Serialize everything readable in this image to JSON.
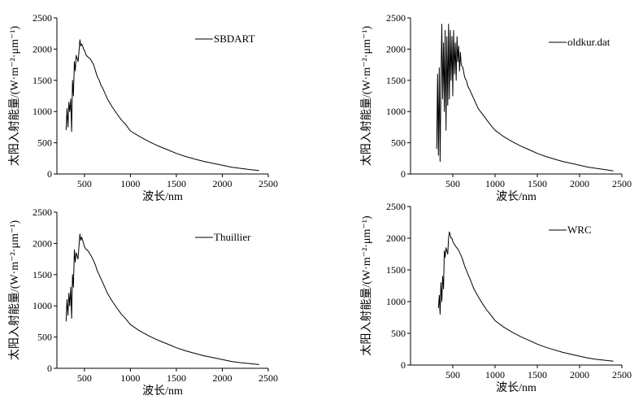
{
  "colors": {
    "line": "#000000",
    "axis": "#000000",
    "background": "#ffffff"
  },
  "chart_data": [
    {
      "type": "line",
      "title": "",
      "xlabel": "波长/nm",
      "ylabel": "太阳入射能量/(W·m⁻²·μm⁻¹)",
      "xlim": [
        200,
        2500
      ],
      "ylim": [
        0,
        2500
      ],
      "xticks": [
        500,
        1000,
        1500,
        2000,
        2500
      ],
      "yticks": [
        0,
        500,
        1000,
        1500,
        2000,
        2500
      ],
      "grid": false,
      "legend_position": "top-right",
      "series": [
        {
          "name": "SBDART",
          "x": [
            300,
            310,
            320,
            330,
            340,
            350,
            360,
            370,
            380,
            390,
            400,
            410,
            420,
            430,
            440,
            450,
            460,
            470,
            480,
            490,
            500,
            520,
            540,
            560,
            580,
            600,
            620,
            640,
            660,
            680,
            700,
            750,
            800,
            850,
            900,
            950,
            1000,
            1100,
            1200,
            1300,
            1400,
            1500,
            1600,
            1700,
            1800,
            1900,
            2000,
            2100,
            2200,
            2300,
            2400
          ],
          "y": [
            700,
            1050,
            750,
            1150,
            1000,
            1200,
            680,
            1500,
            1250,
            1800,
            1650,
            1900,
            1850,
            1800,
            1950,
            2150,
            2050,
            2080,
            2050,
            2000,
            1980,
            1900,
            1870,
            1850,
            1800,
            1750,
            1650,
            1560,
            1500,
            1420,
            1370,
            1200,
            1080,
            970,
            870,
            790,
            690,
            600,
            520,
            450,
            390,
            330,
            280,
            240,
            200,
            170,
            140,
            110,
            90,
            70,
            55
          ]
        }
      ]
    },
    {
      "type": "line",
      "title": "",
      "xlabel": "波长/nm",
      "ylabel": "太阳入射能量/(W·m⁻²·μm⁻¹)",
      "xlim": [
        0,
        2500
      ],
      "ylim": [
        0,
        2500
      ],
      "xticks": [
        500,
        1000,
        1500,
        2000,
        2500
      ],
      "yticks": [
        0,
        500,
        1000,
        1500,
        2000,
        2500
      ],
      "grid": false,
      "legend_position": "top-right",
      "series": [
        {
          "name": "oldkur.dat",
          "x": [
            310,
            320,
            330,
            340,
            350,
            360,
            370,
            380,
            390,
            400,
            410,
            420,
            430,
            440,
            450,
            460,
            470,
            480,
            490,
            500,
            510,
            520,
            530,
            540,
            550,
            560,
            570,
            580,
            590,
            600,
            620,
            640,
            660,
            680,
            700,
            750,
            800,
            850,
            900,
            950,
            1000,
            1100,
            1200,
            1300,
            1400,
            1500,
            1600,
            1700,
            1800,
            1900,
            2000,
            2100,
            2200,
            2300,
            2400
          ],
          "y": [
            400,
            1600,
            300,
            1700,
            200,
            1400,
            2400,
            1200,
            2100,
            1000,
            2300,
            700,
            2200,
            1100,
            2400,
            1200,
            2300,
            1500,
            2200,
            1250,
            2300,
            1600,
            2100,
            1500,
            2200,
            1800,
            2050,
            1650,
            1950,
            1750,
            1700,
            1550,
            1500,
            1400,
            1350,
            1200,
            1050,
            960,
            870,
            780,
            700,
            600,
            520,
            450,
            390,
            330,
            280,
            240,
            200,
            170,
            140,
            110,
            90,
            70,
            50
          ]
        }
      ]
    },
    {
      "type": "line",
      "title": "",
      "xlabel": "波长/nm",
      "ylabel": "太阳入射能量/(W·m⁻²·μm⁻¹)",
      "xlim": [
        200,
        2500
      ],
      "ylim": [
        0,
        2500
      ],
      "xticks": [
        500,
        1000,
        1500,
        2000,
        2500
      ],
      "yticks": [
        0,
        500,
        1000,
        1500,
        2000,
        2500
      ],
      "grid": false,
      "legend_position": "top-right",
      "series": [
        {
          "name": "Thuillier",
          "x": [
            300,
            310,
            320,
            330,
            340,
            350,
            360,
            370,
            380,
            390,
            400,
            410,
            420,
            430,
            440,
            450,
            460,
            470,
            480,
            490,
            500,
            520,
            540,
            560,
            580,
            600,
            620,
            640,
            660,
            680,
            700,
            750,
            800,
            850,
            900,
            950,
            1000,
            1100,
            1200,
            1300,
            1400,
            1500,
            1600,
            1700,
            1800,
            1900,
            2000,
            2100,
            2200,
            2300,
            2400
          ],
          "y": [
            750,
            1100,
            850,
            1200,
            1000,
            1300,
            800,
            1500,
            1300,
            1900,
            1700,
            1850,
            1800,
            1750,
            1950,
            2150,
            2050,
            2100,
            2050,
            2000,
            1950,
            1900,
            1880,
            1830,
            1780,
            1720,
            1650,
            1560,
            1500,
            1430,
            1370,
            1200,
            1080,
            970,
            870,
            790,
            700,
            600,
            520,
            450,
            390,
            330,
            280,
            240,
            200,
            170,
            140,
            110,
            90,
            75,
            60
          ]
        }
      ]
    },
    {
      "type": "line",
      "title": "",
      "xlabel": "波长/nm",
      "ylabel": "太阳入射能量/(W·m⁻²·μm⁻¹)",
      "xlim": [
        0,
        2500
      ],
      "ylim": [
        0,
        2500
      ],
      "xticks": [
        500,
        1000,
        1500,
        2000,
        2500
      ],
      "yticks": [
        0,
        500,
        1000,
        1500,
        2000,
        2500
      ],
      "grid": false,
      "legend_position": "top-right",
      "series": [
        {
          "name": "WRC",
          "x": [
            330,
            340,
            350,
            360,
            370,
            380,
            390,
            400,
            410,
            420,
            430,
            440,
            450,
            460,
            470,
            480,
            490,
            500,
            520,
            540,
            560,
            580,
            600,
            620,
            640,
            660,
            680,
            700,
            750,
            800,
            850,
            900,
            950,
            1000,
            1100,
            1200,
            1300,
            1400,
            1500,
            1600,
            1700,
            1800,
            1900,
            2000,
            2100,
            2200,
            2300,
            2400
          ],
          "y": [
            900,
            1100,
            800,
            1300,
            1000,
            1400,
            1200,
            1800,
            1700,
            1850,
            1800,
            1750,
            2000,
            2100,
            2050,
            2000,
            2000,
            1950,
            1900,
            1860,
            1830,
            1780,
            1720,
            1650,
            1560,
            1500,
            1430,
            1370,
            1200,
            1080,
            970,
            870,
            790,
            700,
            600,
            520,
            450,
            390,
            330,
            280,
            240,
            200,
            170,
            140,
            110,
            90,
            75,
            60
          ]
        }
      ]
    }
  ]
}
